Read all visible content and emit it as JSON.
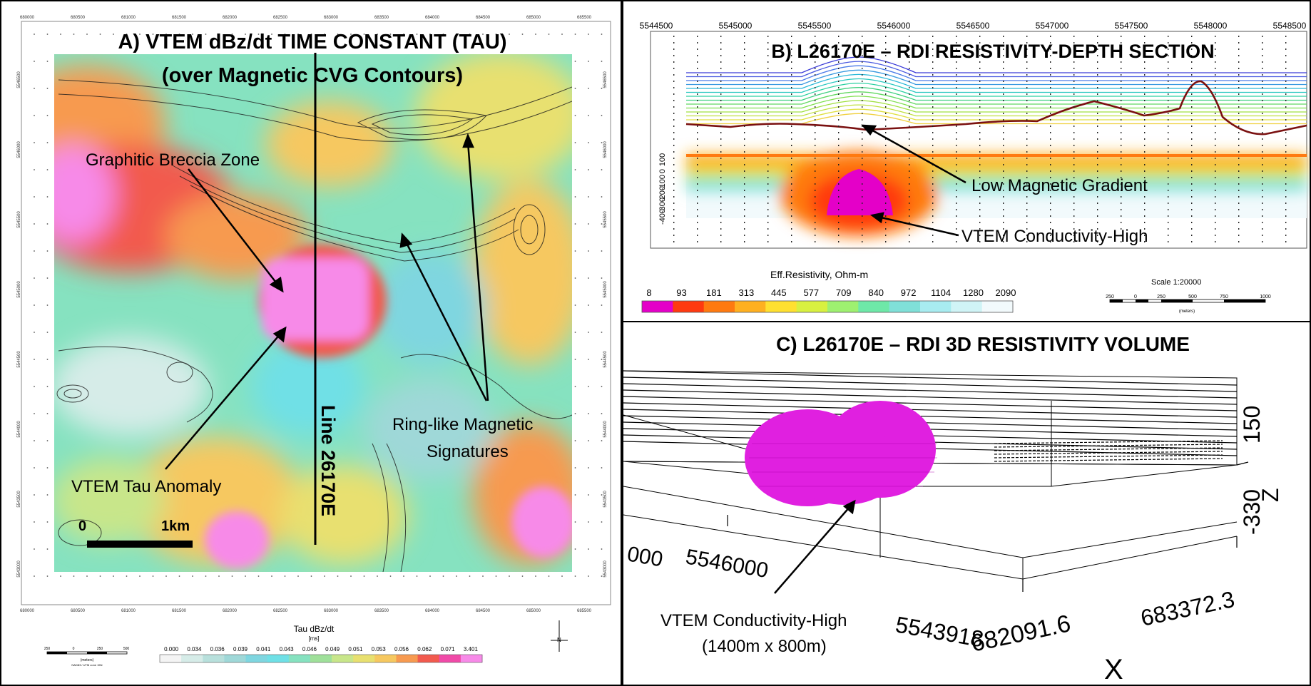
{
  "panel_a": {
    "title_line1": "A) VTEM dBz/dt TIME CONSTANT (TAU)",
    "title_line2": "(over Magnetic CVG Contours)",
    "labels": {
      "breccia": "Graphitic Breccia Zone",
      "tau_anomaly": "VTEM Tau Anomaly",
      "ring_line1": "Ring-like Magnetic",
      "ring_line2": "Signatures",
      "line": "Line 26170E",
      "scale_zero": "0",
      "scale_km": "1km"
    },
    "x_ticks": [
      "680000",
      "680500",
      "681000",
      "681500",
      "682000",
      "682500",
      "683000",
      "683500",
      "684000",
      "684500",
      "685000",
      "685500"
    ],
    "y_ticks": [
      "5546500",
      "5546000",
      "5545500",
      "5545000",
      "5544500",
      "5544000",
      "5543500",
      "5543000"
    ],
    "colorbar": {
      "title": "Tau dBz/dt",
      "unit": "[ms]",
      "values": [
        "0.000",
        "0.034",
        "0.036",
        "0.039",
        "0.041",
        "0.043",
        "0.046",
        "0.049",
        "0.051",
        "0.053",
        "0.056",
        "0.062",
        "0.071",
        "3.401"
      ],
      "colors": [
        "#f4f4f4",
        "#d6ece8",
        "#b8e0dc",
        "#9fd8d8",
        "#7fd6e0",
        "#6fe0e6",
        "#86e2c0",
        "#9fe09a",
        "#c8e68a",
        "#e8e070",
        "#f6c860",
        "#f79a50",
        "#f25a4e",
        "#f04aa8",
        "#f78ae8"
      ]
    },
    "small_scale": {
      "ticks": [
        "250",
        "0",
        "250",
        "500"
      ],
      "unit": "(meters)",
      "note": "NAD83 / UTM zone 15N"
    },
    "north": "N"
  },
  "panel_b": {
    "title": "B) L26170E – RDI RESISTIVITY-DEPTH SECTION",
    "x_ticks": [
      "5544500",
      "5545000",
      "5545500",
      "5546000",
      "5546500",
      "5547000",
      "5547500",
      "5548000",
      "5548500"
    ],
    "depth_ticks": [
      "100",
      "0",
      "-100",
      "-200",
      "-300",
      "-400"
    ],
    "labels": {
      "low_mag": "Low Magnetic Gradient",
      "vtem_high": "VTEM Conductivity-High"
    },
    "colorbar": {
      "title": "Eff.Resistivity, Ohm-m",
      "values": [
        "8",
        "93",
        "181",
        "313",
        "445",
        "577",
        "709",
        "840",
        "972",
        "1104",
        "1280",
        "2090"
      ],
      "colors": [
        "#e400c8",
        "#ff3a10",
        "#ff7a10",
        "#ffb020",
        "#ffe030",
        "#d8f040",
        "#9ef070",
        "#6ee8a8",
        "#80e0d8",
        "#a8ecf0",
        "#d0f4f6",
        "#f2fafc"
      ]
    },
    "scale": {
      "title": "Scale 1:20000",
      "ticks": [
        "250",
        "0",
        "250",
        "500",
        "750",
        "1000"
      ],
      "unit": "(meters)"
    }
  },
  "panel_c": {
    "title": "C) L26170E – RDI  3D RESISTIVITY VOLUME",
    "axis_labels": {
      "y_partial": "000",
      "y_mid": "5546000",
      "y_end": "5543918",
      "x_mid": "682091.6",
      "x_end": "683372.3",
      "z_top": "150",
      "z_bot": "-330",
      "z": "Z",
      "x": "X"
    },
    "labels": {
      "vtem_high": "VTEM Conductivity-High",
      "dims": "(1400m x 800m)"
    }
  }
}
